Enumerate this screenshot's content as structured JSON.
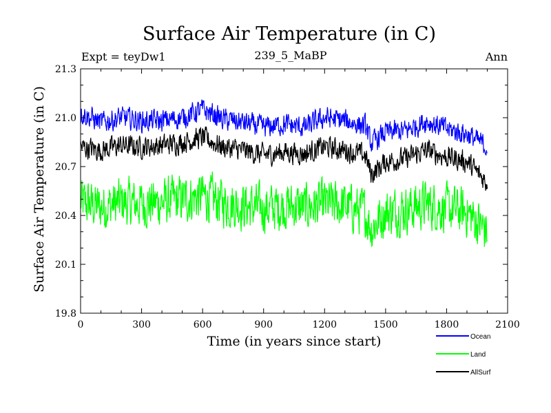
{
  "chart_data": {
    "type": "line",
    "title": "Surface Air Temperature (in C)",
    "subtitle_left": "Expt = teyDw1",
    "subtitle_center": "239_5_MaBP",
    "subtitle_right": "Ann",
    "xlabel": "Time (in years since start)",
    "ylabel": "Surface Air Temperature (in C)",
    "xlim": [
      0,
      2100
    ],
    "ylim": [
      19.8,
      21.3
    ],
    "xticks": [
      0,
      300,
      600,
      900,
      1200,
      1500,
      1800,
      2100
    ],
    "yticks": [
      19.8,
      20.1,
      20.4,
      20.7,
      21.0,
      21.3
    ],
    "xtick_labels": [
      "0",
      "300",
      "600",
      "900",
      "1200",
      "1500",
      "1800",
      "2100"
    ],
    "ytick_labels": [
      "19.8",
      "20.1",
      "20.4",
      "20.7",
      "21.0",
      "21.3"
    ],
    "x_range_of_data": [
      0,
      2000
    ],
    "series": [
      {
        "name": "Ocean",
        "color": "#0000ff",
        "noise": 0.06,
        "anchors": [
          [
            0,
            21.03
          ],
          [
            100,
            20.97
          ],
          [
            200,
            21.0
          ],
          [
            300,
            20.98
          ],
          [
            400,
            20.98
          ],
          [
            500,
            21.0
          ],
          [
            600,
            21.05
          ],
          [
            700,
            20.99
          ],
          [
            800,
            20.97
          ],
          [
            900,
            20.94
          ],
          [
            1000,
            20.96
          ],
          [
            1100,
            20.94
          ],
          [
            1200,
            21.0
          ],
          [
            1300,
            20.98
          ],
          [
            1400,
            20.95
          ],
          [
            1430,
            20.84
          ],
          [
            1500,
            20.91
          ],
          [
            1600,
            20.92
          ],
          [
            1700,
            20.98
          ],
          [
            1800,
            20.93
          ],
          [
            1900,
            20.9
          ],
          [
            2000,
            20.82
          ]
        ]
      },
      {
        "name": "Land",
        "color": "#00ff00",
        "noise": 0.13,
        "anchors": [
          [
            0,
            20.48
          ],
          [
            100,
            20.45
          ],
          [
            200,
            20.48
          ],
          [
            300,
            20.47
          ],
          [
            400,
            20.48
          ],
          [
            500,
            20.5
          ],
          [
            600,
            20.52
          ],
          [
            700,
            20.48
          ],
          [
            800,
            20.46
          ],
          [
            900,
            20.44
          ],
          [
            1000,
            20.46
          ],
          [
            1100,
            20.45
          ],
          [
            1200,
            20.47
          ],
          [
            1300,
            20.46
          ],
          [
            1400,
            20.42
          ],
          [
            1430,
            20.32
          ],
          [
            1500,
            20.42
          ],
          [
            1600,
            20.44
          ],
          [
            1700,
            20.47
          ],
          [
            1800,
            20.44
          ],
          [
            1900,
            20.42
          ],
          [
            2000,
            20.3
          ]
        ]
      },
      {
        "name": "AllSurf",
        "color": "#000000",
        "noise": 0.06,
        "anchors": [
          [
            0,
            20.82
          ],
          [
            100,
            20.8
          ],
          [
            200,
            20.83
          ],
          [
            300,
            20.82
          ],
          [
            400,
            20.83
          ],
          [
            500,
            20.85
          ],
          [
            600,
            20.88
          ],
          [
            700,
            20.82
          ],
          [
            800,
            20.8
          ],
          [
            900,
            20.77
          ],
          [
            1000,
            20.79
          ],
          [
            1100,
            20.78
          ],
          [
            1200,
            20.82
          ],
          [
            1300,
            20.8
          ],
          [
            1400,
            20.77
          ],
          [
            1430,
            20.65
          ],
          [
            1500,
            20.73
          ],
          [
            1600,
            20.75
          ],
          [
            1700,
            20.8
          ],
          [
            1800,
            20.76
          ],
          [
            1900,
            20.73
          ],
          [
            2000,
            20.6
          ]
        ]
      }
    ],
    "legend_position": "below-right"
  }
}
